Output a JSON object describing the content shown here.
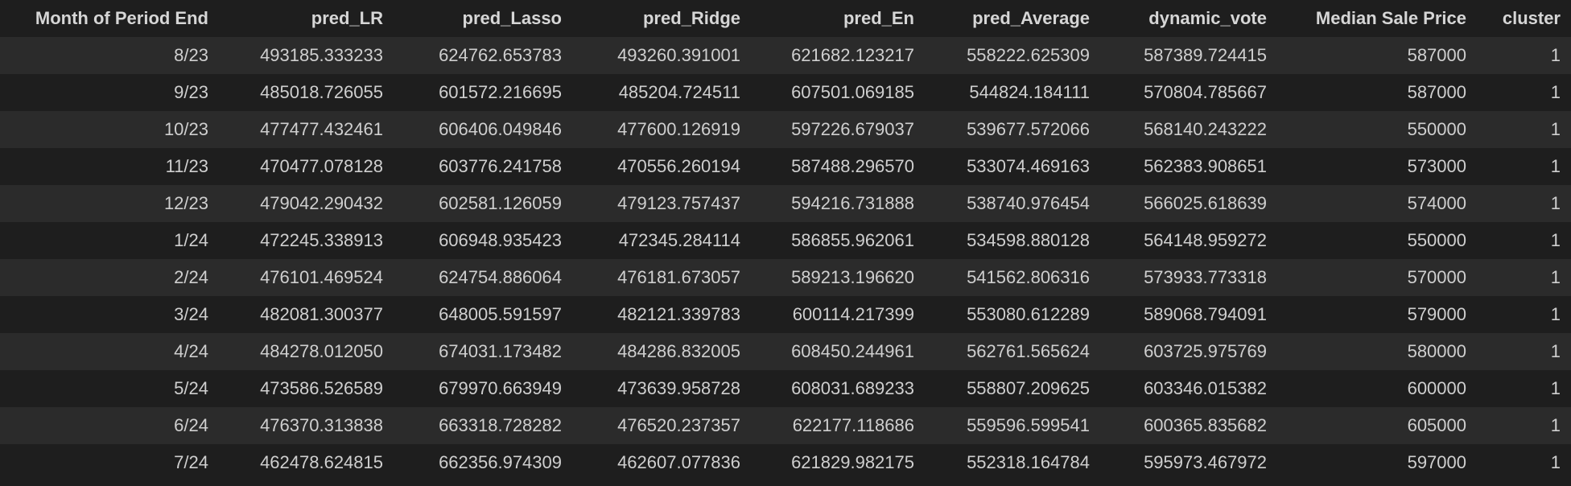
{
  "columns": [
    "Month of Period End",
    "pred_LR",
    "pred_Lasso",
    "pred_Ridge",
    "pred_En",
    "pred_Average",
    "dynamic_vote",
    "Median Sale Price",
    "cluster"
  ],
  "rows": [
    [
      "8/23",
      "493185.333233",
      "624762.653783",
      "493260.391001",
      "621682.123217",
      "558222.625309",
      "587389.724415",
      "587000",
      "1"
    ],
    [
      "9/23",
      "485018.726055",
      "601572.216695",
      "485204.724511",
      "607501.069185",
      "544824.184111",
      "570804.785667",
      "587000",
      "1"
    ],
    [
      "10/23",
      "477477.432461",
      "606406.049846",
      "477600.126919",
      "597226.679037",
      "539677.572066",
      "568140.243222",
      "550000",
      "1"
    ],
    [
      "11/23",
      "470477.078128",
      "603776.241758",
      "470556.260194",
      "587488.296570",
      "533074.469163",
      "562383.908651",
      "573000",
      "1"
    ],
    [
      "12/23",
      "479042.290432",
      "602581.126059",
      "479123.757437",
      "594216.731888",
      "538740.976454",
      "566025.618639",
      "574000",
      "1"
    ],
    [
      "1/24",
      "472245.338913",
      "606948.935423",
      "472345.284114",
      "586855.962061",
      "534598.880128",
      "564148.959272",
      "550000",
      "1"
    ],
    [
      "2/24",
      "476101.469524",
      "624754.886064",
      "476181.673057",
      "589213.196620",
      "541562.806316",
      "573933.773318",
      "570000",
      "1"
    ],
    [
      "3/24",
      "482081.300377",
      "648005.591597",
      "482121.339783",
      "600114.217399",
      "553080.612289",
      "589068.794091",
      "579000",
      "1"
    ],
    [
      "4/24",
      "484278.012050",
      "674031.173482",
      "484286.832005",
      "608450.244961",
      "562761.565624",
      "603725.975769",
      "580000",
      "1"
    ],
    [
      "5/24",
      "473586.526589",
      "679970.663949",
      "473639.958728",
      "608031.689233",
      "558807.209625",
      "603346.015382",
      "600000",
      "1"
    ],
    [
      "6/24",
      "476370.313838",
      "663318.728282",
      "476520.237357",
      "622177.118686",
      "559596.599541",
      "600365.835682",
      "605000",
      "1"
    ],
    [
      "7/24",
      "462478.624815",
      "662356.974309",
      "462607.077836",
      "621829.982175",
      "552318.164784",
      "595973.467972",
      "597000",
      "1"
    ]
  ]
}
